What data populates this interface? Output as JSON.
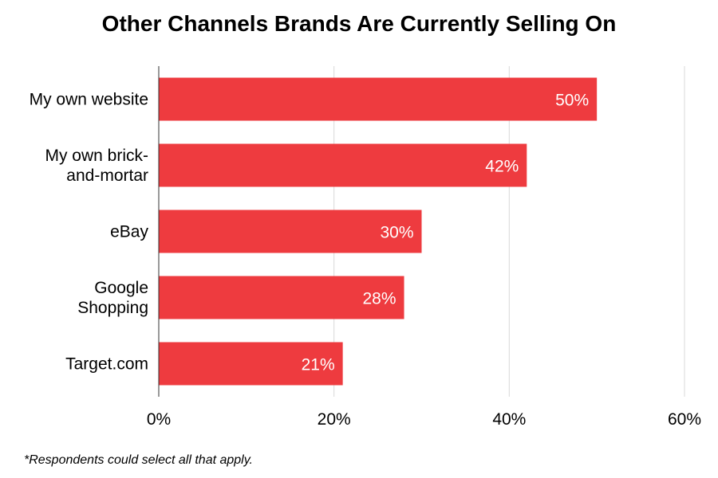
{
  "chart_data": {
    "type": "bar",
    "orientation": "horizontal",
    "title": "Other Channels Brands Are Currently Selling On",
    "xlabel": "",
    "ylabel": "",
    "categories": [
      [
        "My own website"
      ],
      [
        "My own brick-",
        "and-mortar"
      ],
      [
        "eBay"
      ],
      [
        "Google",
        "Shopping"
      ],
      [
        "Target.com"
      ]
    ],
    "values": [
      50,
      42,
      30,
      28,
      21
    ],
    "value_labels": [
      "50%",
      "42%",
      "30%",
      "28%",
      "21%"
    ],
    "xlim": [
      0,
      60
    ],
    "ticks": [
      0,
      20,
      40,
      60
    ],
    "tick_labels": [
      "0%",
      "20%",
      "40%",
      "60%"
    ],
    "grid": true,
    "legend": "none",
    "bar_color": "#EE3B3F",
    "gridline_color": "#D9D9D9"
  },
  "footnote": "*Respondents could select all that apply."
}
